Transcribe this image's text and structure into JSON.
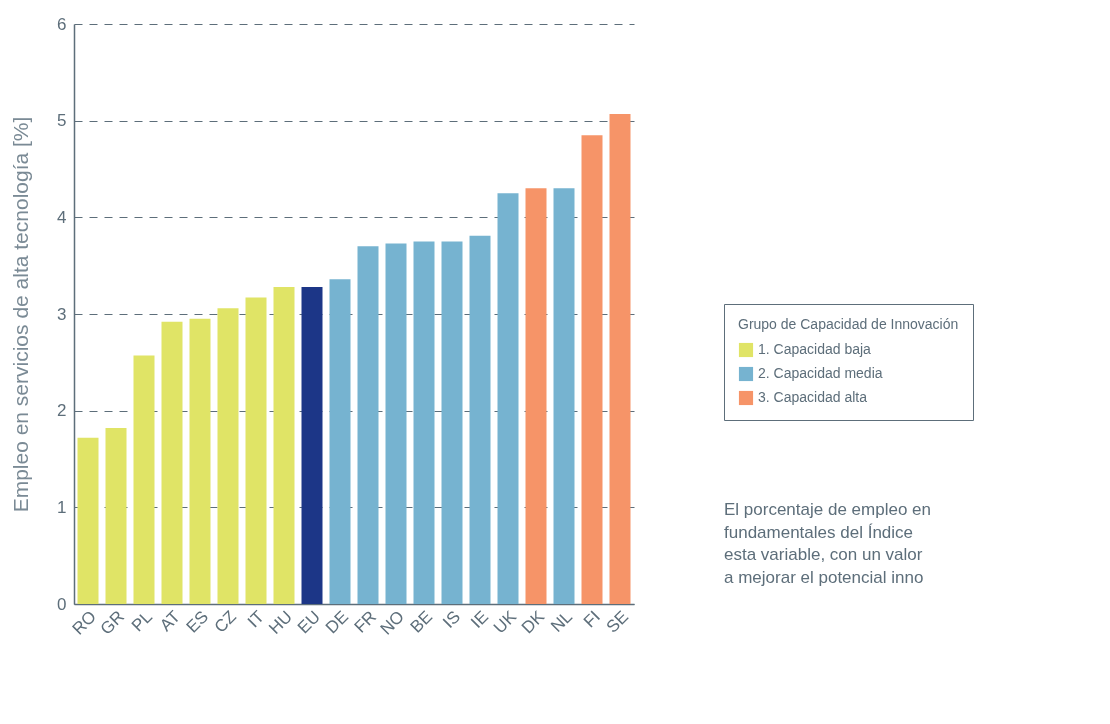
{
  "chart_data": {
    "type": "bar",
    "stacked": true,
    "categories": [
      "RO",
      "GR",
      "PL",
      "AT",
      "ES",
      "CZ",
      "IT",
      "HU",
      "EU",
      "DE",
      "FR",
      "NO",
      "BE",
      "IS",
      "IE",
      "UK",
      "DK",
      "NL",
      "FI",
      "SE"
    ],
    "series": [
      {
        "name": "1. Capacidad baja",
        "color": "#e0e466",
        "values": [
          1.72,
          1.82,
          2.57,
          2.92,
          2.95,
          3.06,
          3.17,
          3.28,
          null,
          null,
          null,
          null,
          null,
          null,
          null,
          null,
          null,
          null,
          null,
          null
        ]
      },
      {
        "name": "2. Capacidad media",
        "color": "#76b3d0",
        "values": [
          null,
          null,
          null,
          null,
          null,
          null,
          null,
          null,
          null,
          3.36,
          3.7,
          3.73,
          3.75,
          3.75,
          3.81,
          4.25,
          null,
          4.3,
          null,
          null
        ]
      },
      {
        "name": "3. Capacidad alta",
        "color": "#f69468",
        "values": [
          null,
          null,
          null,
          null,
          null,
          null,
          null,
          null,
          null,
          null,
          null,
          null,
          null,
          null,
          null,
          null,
          4.3,
          null,
          4.85,
          5.07
        ]
      },
      {
        "color": "#1c3687",
        "values": [
          null,
          null,
          null,
          null,
          null,
          null,
          null,
          null,
          3.28,
          null,
          null,
          null,
          null,
          null,
          null,
          null,
          null,
          null,
          null,
          null
        ]
      }
    ],
    "ylabel": "Empleo en servicios de alta tecnología [%]",
    "ylim": [
      0,
      6
    ],
    "yticks": [
      0,
      1,
      2,
      3,
      4,
      5,
      6
    ],
    "grid": "y",
    "legend": "right",
    "legend_title": "Grupo de Capacidad de Innovación",
    "annotations": [
      "El porcentaje de empleo en",
      "fundamentales del Índice",
      "esta variable, con un valor",
      "a mejorar el potencial inno"
    ]
  }
}
